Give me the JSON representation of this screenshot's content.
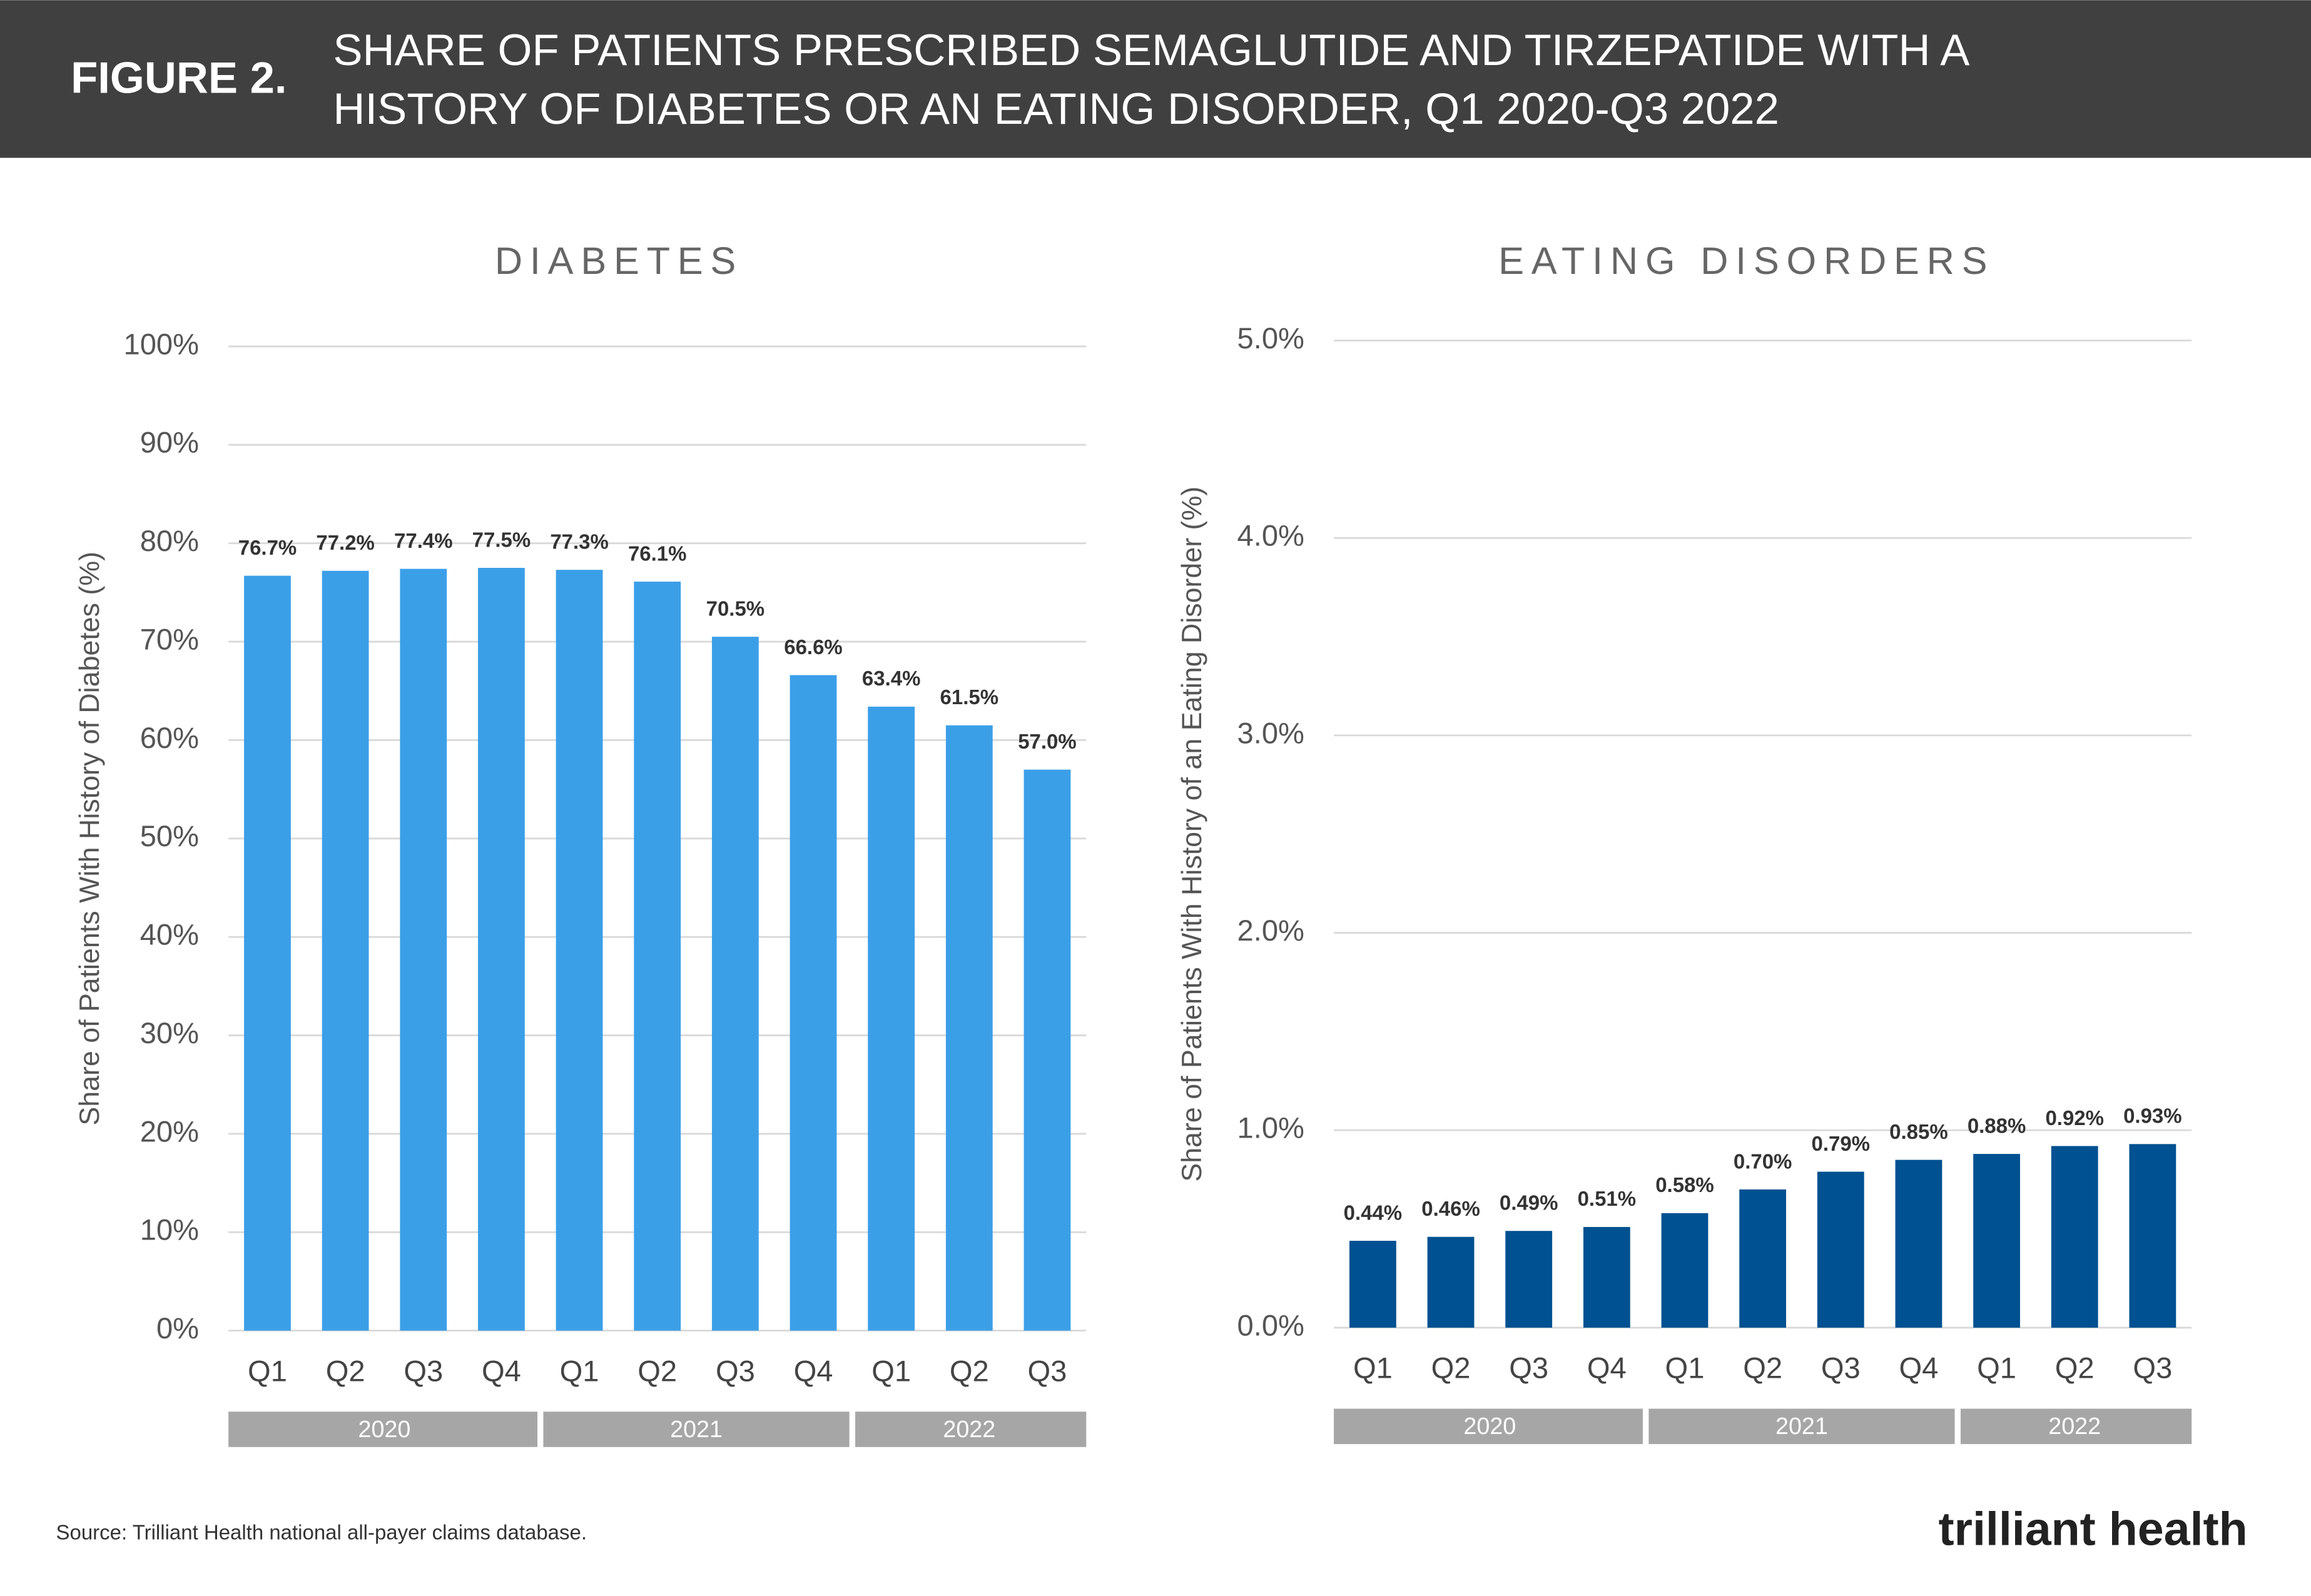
{
  "header": {
    "label": "FIGURE 2.",
    "title": [
      "SHARE OF PATIENTS PRESCRIBED SEMAGLUTIDE AND TIRZEPATIDE  WITH A",
      "HISTORY OF DIABETES OR AN EATING DISORDER, Q1 2020-Q3 2022"
    ]
  },
  "chart_data": [
    {
      "type": "bar",
      "title": "DIABETES",
      "y_label": "Share of Patients With History of Diabetes (%)",
      "categories": [
        "Q1",
        "Q2",
        "Q3",
        "Q4",
        "Q1",
        "Q2",
        "Q3",
        "Q4",
        "Q1",
        "Q2",
        "Q3"
      ],
      "groups": [
        {
          "label": "2020",
          "count": 4
        },
        {
          "label": "2021",
          "count": 4
        },
        {
          "label": "2022",
          "count": 3
        }
      ],
      "values": [
        76.7,
        77.2,
        77.4,
        77.5,
        77.3,
        76.1,
        70.5,
        66.6,
        63.4,
        61.5,
        57.0
      ],
      "value_labels": [
        "76.7%",
        "77.2%",
        "77.4%",
        "77.5%",
        "77.3%",
        "76.1%",
        "70.5%",
        "66.6%",
        "63.4%",
        "61.5%",
        "57.0%"
      ],
      "color": "#3b9fe8",
      "ylim": [
        0,
        100
      ],
      "yticks": [
        {
          "value": 0,
          "label": "0%"
        },
        {
          "value": 10,
          "label": "10%"
        },
        {
          "value": 20,
          "label": "20%"
        },
        {
          "value": 30,
          "label": "30%"
        },
        {
          "value": 40,
          "label": "40%"
        },
        {
          "value": 50,
          "label": "50%"
        },
        {
          "value": 60,
          "label": "60%"
        },
        {
          "value": 70,
          "label": "70%"
        },
        {
          "value": 80,
          "label": "80%"
        },
        {
          "value": 90,
          "label": "90%"
        },
        {
          "value": 100,
          "label": "100%"
        }
      ],
      "grid": true
    },
    {
      "type": "bar",
      "title": "EATING DISORDERS",
      "y_label": "Share of Patients With History of an Eating Disorder (%)",
      "categories": [
        "Q1",
        "Q2",
        "Q3",
        "Q4",
        "Q1",
        "Q2",
        "Q3",
        "Q4",
        "Q1",
        "Q2",
        "Q3"
      ],
      "groups": [
        {
          "label": "2020",
          "count": 4
        },
        {
          "label": "2021",
          "count": 4
        },
        {
          "label": "2022",
          "count": 3
        }
      ],
      "values": [
        0.44,
        0.46,
        0.49,
        0.51,
        0.58,
        0.7,
        0.79,
        0.85,
        0.88,
        0.92,
        0.93
      ],
      "value_labels": [
        "0.44%",
        "0.46%",
        "0.49%",
        "0.51%",
        "0.58%",
        "0.70%",
        "0.79%",
        "0.85%",
        "0.88%",
        "0.92%",
        "0.93%"
      ],
      "color": "#005191",
      "ylim": [
        0,
        5
      ],
      "yticks": [
        {
          "value": 0,
          "label": "0.0%"
        },
        {
          "value": 1,
          "label": "1.0%"
        },
        {
          "value": 2,
          "label": "2.0%"
        },
        {
          "value": 3,
          "label": "3.0%"
        },
        {
          "value": 4,
          "label": "4.0%"
        },
        {
          "value": 5,
          "label": "5.0%"
        }
      ],
      "grid": true
    }
  ],
  "source": "Source: Trilliant Health national all-payer claims database.",
  "logo": "trilliant health"
}
